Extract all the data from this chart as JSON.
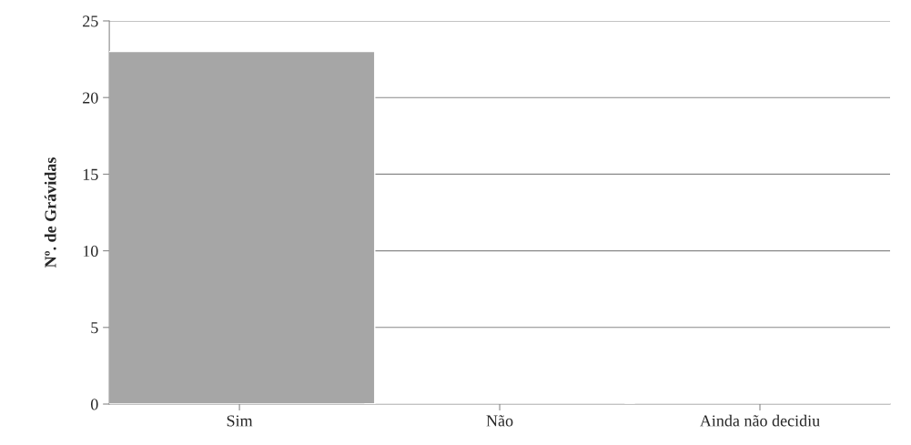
{
  "chart_data": {
    "type": "bar",
    "ylabel": "Nº. de Grávidas",
    "categories": [
      "Sim",
      "Não",
      "Ainda não decidiu"
    ],
    "values": [
      23,
      0,
      0
    ],
    "color": "#a6a6a6",
    "ylim": [
      0,
      25
    ],
    "yticks": [
      0,
      5,
      10,
      15,
      20,
      25
    ],
    "grid": "y"
  }
}
